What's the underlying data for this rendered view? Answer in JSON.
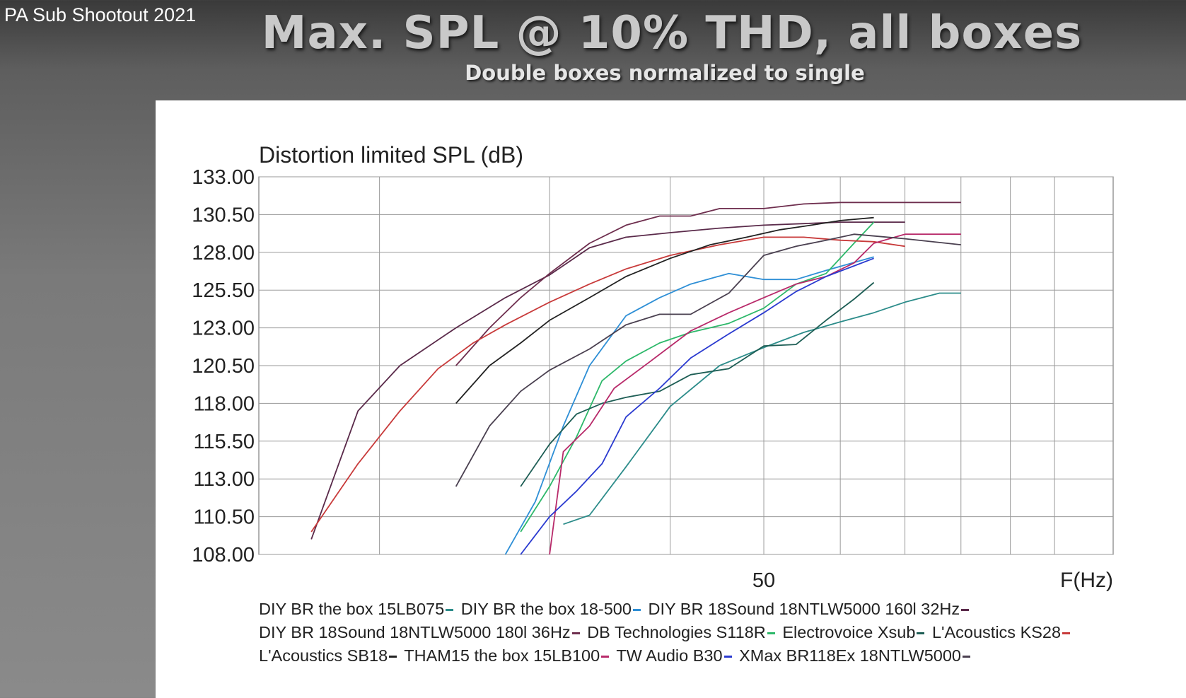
{
  "header": {
    "corner_title": "PA Sub Shootout 2021",
    "main_title": "Max. SPL @ 10% THD, all boxes",
    "subtitle": "Double boxes normalized to single"
  },
  "chart_data": {
    "type": "line",
    "title": "Distortion limited SPL (dB)",
    "xlabel": "F(Hz)",
    "ylabel": "Distortion limited SPL (dB)",
    "x_scale": "log",
    "xlim": [
      15,
      115
    ],
    "ylim": [
      108,
      133
    ],
    "y_ticks": [
      "108.00",
      "110.50",
      "113.00",
      "115.50",
      "118.00",
      "120.50",
      "123.00",
      "125.50",
      "128.00",
      "130.50",
      "133.00"
    ],
    "x_tick_labels": [
      {
        "value": 50,
        "label": "50"
      }
    ],
    "grid": true,
    "legend_position": "bottom",
    "series": [
      {
        "name": "DIY BR the box 15LB075",
        "color": "#2c8c8a",
        "points": [
          [
            31,
            110
          ],
          [
            33,
            110.6
          ],
          [
            36,
            113.8
          ],
          [
            40,
            117.8
          ],
          [
            45,
            120.5
          ],
          [
            50,
            121.7
          ],
          [
            55,
            122.7
          ],
          [
            60,
            123.4
          ],
          [
            65,
            124
          ],
          [
            70,
            124.7
          ],
          [
            76,
            125.3
          ],
          [
            80,
            125.3
          ]
        ]
      },
      {
        "name": "DIY BR the box 18-500",
        "color": "#2e8fd6",
        "points": [
          [
            27,
            108
          ],
          [
            29,
            111.5
          ],
          [
            31,
            116.5
          ],
          [
            33,
            120.5
          ],
          [
            36,
            123.8
          ],
          [
            39,
            125
          ],
          [
            42,
            125.9
          ],
          [
            46,
            126.6
          ],
          [
            50,
            126.2
          ],
          [
            54,
            126.2
          ],
          [
            58,
            126.8
          ],
          [
            61,
            127.2
          ],
          [
            65,
            127.7
          ]
        ]
      },
      {
        "name": "DIY BR 18Sound 18NTLW5000 160l 32Hz",
        "color": "#5a2a4a",
        "points": [
          [
            17,
            109
          ],
          [
            19,
            117.5
          ],
          [
            21,
            120.5
          ],
          [
            24,
            123
          ],
          [
            27,
            125
          ],
          [
            30,
            126.5
          ],
          [
            33,
            128.3
          ],
          [
            36,
            129
          ],
          [
            40,
            129.3
          ],
          [
            45,
            129.6
          ],
          [
            50,
            129.8
          ],
          [
            55,
            129.9
          ],
          [
            60,
            130
          ],
          [
            65,
            130
          ],
          [
            70,
            130
          ]
        ]
      },
      {
        "name": "DIY BR 18Sound 18NTLW5000 180l 36Hz",
        "color": "#6e2e4e",
        "points": [
          [
            24,
            120.5
          ],
          [
            26,
            123
          ],
          [
            28,
            125
          ],
          [
            30,
            126.6
          ],
          [
            33,
            128.6
          ],
          [
            36,
            129.8
          ],
          [
            39,
            130.4
          ],
          [
            42,
            130.4
          ],
          [
            45,
            130.9
          ],
          [
            50,
            130.9
          ],
          [
            55,
            131.2
          ],
          [
            60,
            131.3
          ],
          [
            70,
            131.3
          ],
          [
            80,
            131.3
          ]
        ]
      },
      {
        "name": "DB Technologies S118R",
        "color": "#2db86a",
        "points": [
          [
            28,
            109.5
          ],
          [
            30,
            112.5
          ],
          [
            32,
            115.8
          ],
          [
            34,
            119.5
          ],
          [
            36,
            120.8
          ],
          [
            39,
            122
          ],
          [
            42,
            122.7
          ],
          [
            46,
            123.3
          ],
          [
            50,
            124.3
          ],
          [
            54,
            125.9
          ],
          [
            58,
            126.6
          ],
          [
            62,
            128.6
          ],
          [
            65,
            130
          ]
        ]
      },
      {
        "name": "Electrovoice Xsub",
        "color": "#1e5e55",
        "points": [
          [
            28,
            112.5
          ],
          [
            30,
            115.3
          ],
          [
            32,
            117.3
          ],
          [
            34,
            118
          ],
          [
            36,
            118.4
          ],
          [
            39,
            118.8
          ],
          [
            42,
            119.9
          ],
          [
            46,
            120.3
          ],
          [
            50,
            121.8
          ],
          [
            54,
            121.9
          ],
          [
            58,
            123.5
          ],
          [
            62,
            124.9
          ],
          [
            65,
            126
          ]
        ]
      },
      {
        "name": "L'Acoustics KS28",
        "color": "#c83a3a",
        "points": [
          [
            17,
            109.5
          ],
          [
            19,
            114
          ],
          [
            21,
            117.5
          ],
          [
            23,
            120.3
          ],
          [
            25,
            122
          ],
          [
            27,
            123.2
          ],
          [
            30,
            124.7
          ],
          [
            33,
            125.9
          ],
          [
            36,
            126.9
          ],
          [
            40,
            127.8
          ],
          [
            45,
            128.5
          ],
          [
            50,
            129
          ],
          [
            55,
            129
          ],
          [
            60,
            128.8
          ],
          [
            65,
            128.7
          ],
          [
            70,
            128.4
          ]
        ]
      },
      {
        "name": "L'Acoustics SB18",
        "color": "#222222",
        "points": [
          [
            24,
            118
          ],
          [
            26,
            120.5
          ],
          [
            28,
            122
          ],
          [
            30,
            123.5
          ],
          [
            33,
            125
          ],
          [
            36,
            126.4
          ],
          [
            40,
            127.6
          ],
          [
            44,
            128.5
          ],
          [
            48,
            129
          ],
          [
            52,
            129.5
          ],
          [
            56,
            129.8
          ],
          [
            60,
            130.1
          ],
          [
            65,
            130.3
          ]
        ]
      },
      {
        "name": "THAM15 the box 15LB100",
        "color": "#b82a6a",
        "points": [
          [
            30,
            108
          ],
          [
            31,
            114.8
          ],
          [
            33,
            116.5
          ],
          [
            35,
            119
          ],
          [
            38,
            120.7
          ],
          [
            42,
            122.8
          ],
          [
            46,
            124
          ],
          [
            50,
            125
          ],
          [
            54,
            125.9
          ],
          [
            58,
            126.4
          ],
          [
            62,
            127.3
          ],
          [
            65,
            128.6
          ],
          [
            70,
            129.2
          ],
          [
            80,
            129.2
          ]
        ]
      },
      {
        "name": "TW Audio B30",
        "color": "#2a3ad0",
        "points": [
          [
            28,
            108
          ],
          [
            30,
            110.5
          ],
          [
            32,
            112.2
          ],
          [
            34,
            114
          ],
          [
            36,
            117.1
          ],
          [
            39,
            119
          ],
          [
            42,
            121
          ],
          [
            46,
            122.6
          ],
          [
            50,
            124
          ],
          [
            54,
            125.4
          ],
          [
            58,
            126.4
          ],
          [
            62,
            127.1
          ],
          [
            65,
            127.6
          ]
        ]
      },
      {
        "name": "XMax BR118Ex 18NTLW5000",
        "color": "#4a4050",
        "points": [
          [
            24,
            112.5
          ],
          [
            26,
            116.5
          ],
          [
            28,
            118.8
          ],
          [
            30,
            120.2
          ],
          [
            33,
            121.6
          ],
          [
            36,
            123.2
          ],
          [
            39,
            123.9
          ],
          [
            42,
            123.9
          ],
          [
            46,
            125.3
          ],
          [
            50,
            127.8
          ],
          [
            54,
            128.4
          ],
          [
            58,
            128.8
          ],
          [
            62,
            129.2
          ],
          [
            70,
            128.9
          ],
          [
            80,
            128.5
          ]
        ]
      }
    ]
  }
}
